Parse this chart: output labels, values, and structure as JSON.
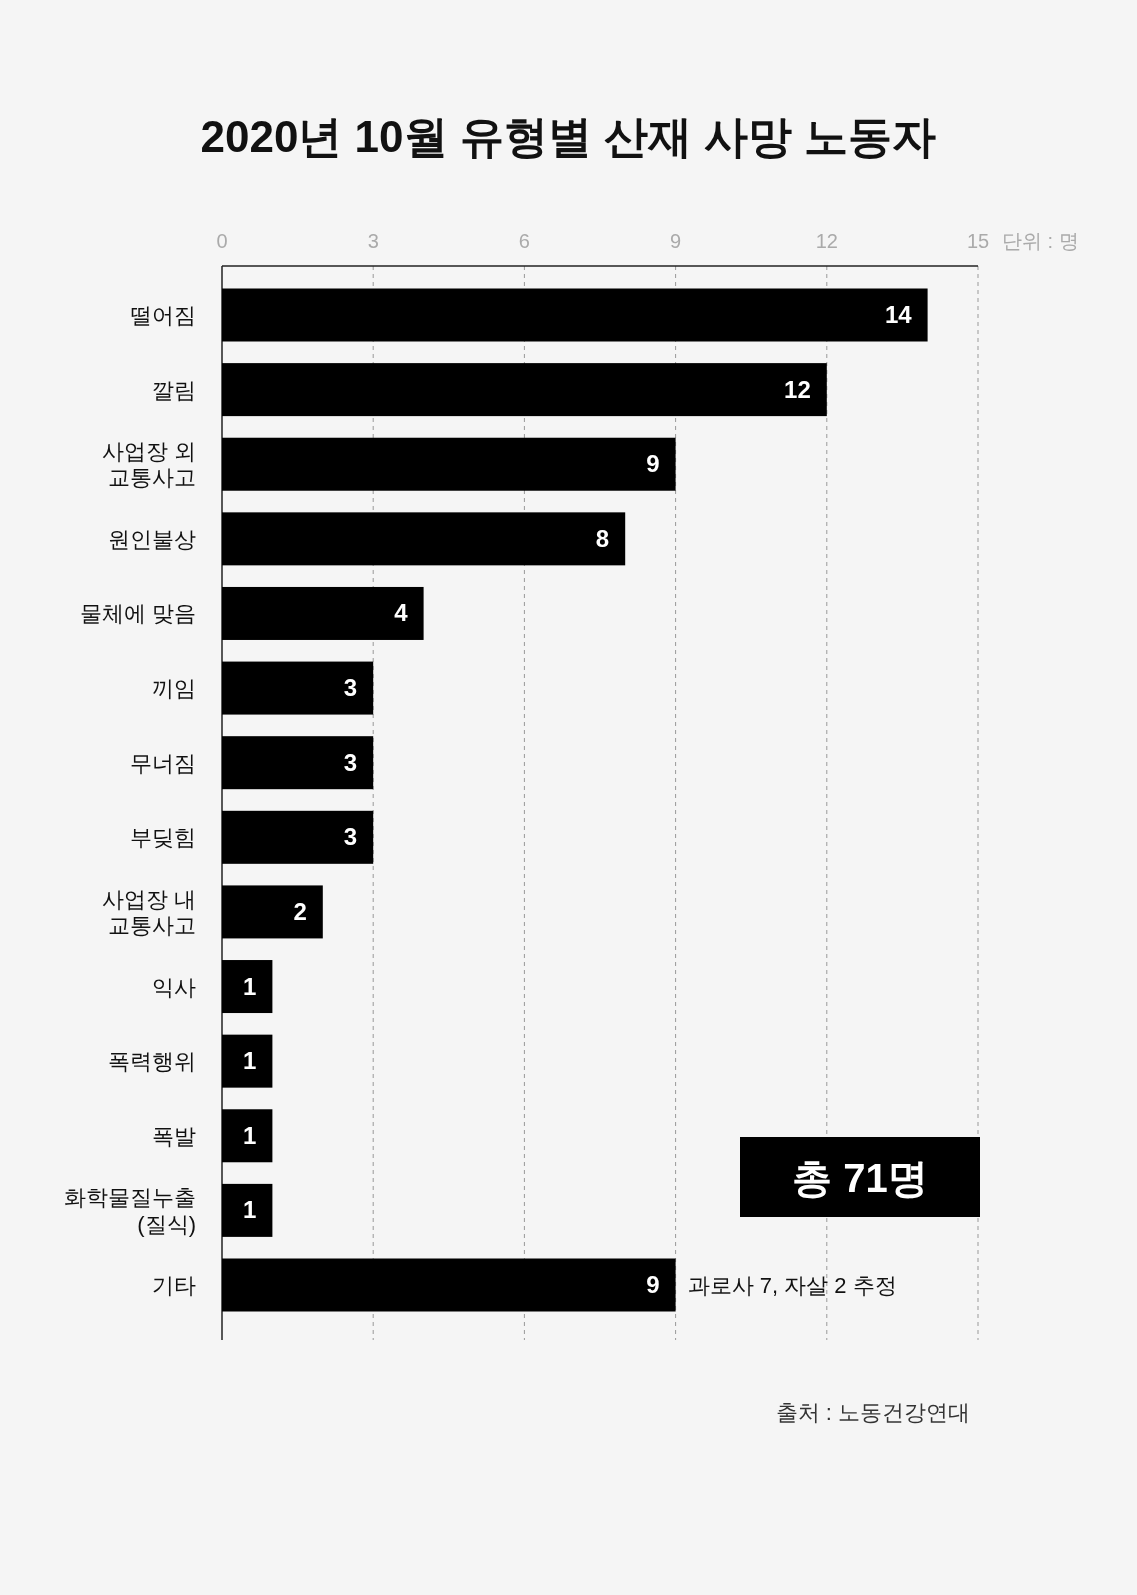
{
  "chart_data": {
    "type": "bar",
    "orientation": "horizontal",
    "title": "2020년 10월 유형별 산재 사망 노동자",
    "xlabel": "단위 : 명",
    "categories": [
      "떨어짐",
      "깔림",
      "사업장 외\n교통사고",
      "원인불상",
      "물체에 맞음",
      "끼임",
      "무너짐",
      "부딪힘",
      "사업장 내\n교통사고",
      "익사",
      "폭력행위",
      "폭발",
      "화학물질누출\n(질식)",
      "기타"
    ],
    "values": [
      14,
      12,
      9,
      8,
      4,
      3,
      3,
      3,
      2,
      1,
      1,
      1,
      1,
      9
    ],
    "color": "#000000",
    "xlim": [
      0,
      15
    ],
    "xticks": [
      0,
      3,
      6,
      9,
      12,
      15
    ],
    "grid": "x",
    "data_labels": true,
    "annotations": [
      {
        "text": "과로사 7, 자살 2 추정",
        "x": 9,
        "y": "기타"
      },
      "총 71명",
      "출처 : 노동건강연대"
    ]
  }
}
